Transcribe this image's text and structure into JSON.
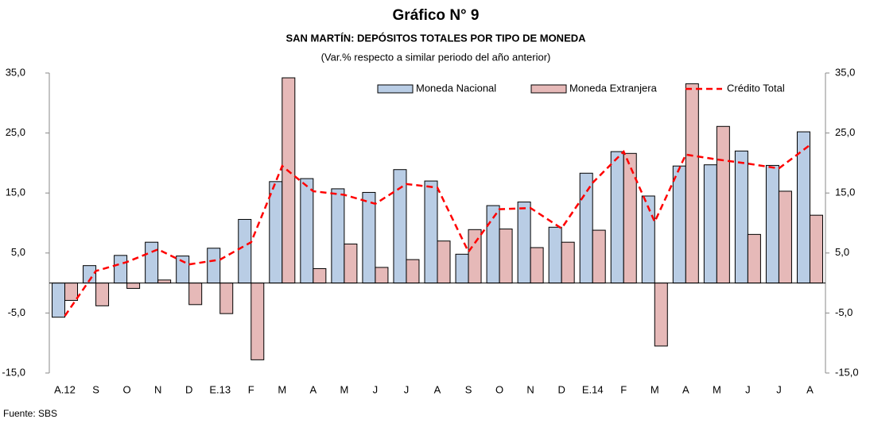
{
  "chart_data": {
    "type": "bar-line",
    "title": "Gráfico N° 9",
    "subtitle": "SAN MARTÍN: DEPÓSITOS TOTALES POR TIPO DE MONEDA",
    "note": "(Var.% respecto a similar periodo del año anterior)",
    "source": "Fuente: SBS",
    "categories": [
      "A.12",
      "S",
      "O",
      "N",
      "D",
      "E.13",
      "F",
      "M",
      "A",
      "M",
      "J",
      "J",
      "A",
      "S",
      "O",
      "N",
      "D",
      "E.14",
      "F",
      "M",
      "A",
      "M",
      "J",
      "J",
      "A"
    ],
    "series": [
      {
        "name": "Moneda Nacional",
        "type": "bar",
        "color": "#b9cde5",
        "values": [
          -5.7,
          2.9,
          4.6,
          6.8,
          4.5,
          5.8,
          10.6,
          16.9,
          17.4,
          15.7,
          15.1,
          18.9,
          17.0,
          4.8,
          12.9,
          13.5,
          9.3,
          18.3,
          21.9,
          14.5,
          19.5,
          19.7,
          22.0,
          19.6,
          25.2
        ]
      },
      {
        "name": "Moneda Extranjera",
        "type": "bar",
        "color": "#e6b9b8",
        "values": [
          -2.9,
          -3.8,
          -0.9,
          0.5,
          -3.6,
          -5.1,
          -12.8,
          34.2,
          2.4,
          6.5,
          2.6,
          3.9,
          7.0,
          8.9,
          9.0,
          5.9,
          6.8,
          8.8,
          21.6,
          -10.5,
          33.2,
          26.1,
          8.1,
          15.3,
          11.3
        ]
      },
      {
        "name": "Crédito Total",
        "type": "line",
        "color": "#ff0000",
        "values": [
          -5.5,
          2.0,
          3.5,
          5.6,
          3.1,
          3.9,
          6.8,
          19.5,
          15.3,
          14.7,
          13.2,
          16.5,
          15.9,
          5.2,
          12.3,
          12.5,
          9.1,
          16.7,
          21.9,
          10.2,
          21.4,
          20.6,
          19.9,
          19.1,
          23.0
        ]
      }
    ],
    "ylim": [
      -15,
      35
    ],
    "yticks": [
      {
        "value": -15,
        "label": "-15,0"
      },
      {
        "value": -5,
        "label": "-5,0"
      },
      {
        "value": 5,
        "label": "5,0"
      },
      {
        "value": 15,
        "label": "15,0"
      },
      {
        "value": 25,
        "label": "25,0"
      },
      {
        "value": 35,
        "label": "35,0"
      }
    ],
    "y2lim": [
      -15,
      35
    ],
    "y2ticks": [
      {
        "value": -15,
        "label": "-15,0"
      },
      {
        "value": -5,
        "label": "-5,0"
      },
      {
        "value": 5,
        "label": "5,0"
      },
      {
        "value": 15,
        "label": "15,0"
      },
      {
        "value": 25,
        "label": "25,0"
      },
      {
        "value": 35,
        "label": "35,0"
      }
    ],
    "legend": "top-right",
    "grid": false
  }
}
